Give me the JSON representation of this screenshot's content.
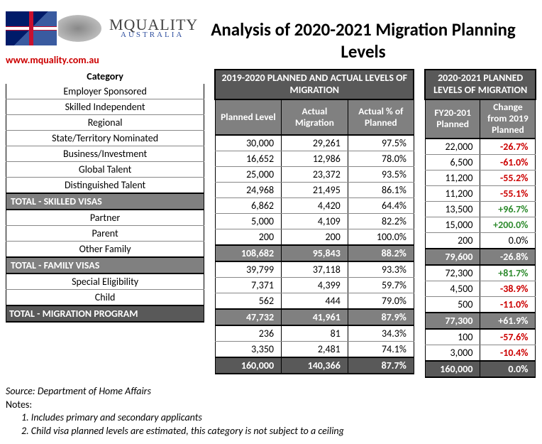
{
  "brand": {
    "line1": "MQUALITY",
    "line2": "AUSTRALIA"
  },
  "url": "www.mquality.com.au",
  "title": "Analysis of 2020-2021 Migration Planning Levels",
  "headers": {
    "category": "Category",
    "t1_super": "2019-2020 PLANNED AND ACTUAL LEVELS OF MIGRATION",
    "t2_super": "2020-2021 PLANNED LEVELS OF MIGRATION",
    "planned_level": "Planned Level",
    "actual_migration": "Actual Migration",
    "actual_pct": "Actual % of Planned",
    "fy_planned": "FY20-201 Planned",
    "change_pct": "Change from 2019 Planned"
  },
  "rows": [
    {
      "type": "data",
      "cat": "Employer Sponsored",
      "plan": "30,000",
      "act": "29,261",
      "apct": "97.5%",
      "fy": "22,000",
      "chg": "-26.7%",
      "sgn": "neg"
    },
    {
      "type": "data",
      "cat": "Skilled Independent",
      "plan": "16,652",
      "act": "12,986",
      "apct": "78.0%",
      "fy": "6,500",
      "chg": "-61.0%",
      "sgn": "neg"
    },
    {
      "type": "data",
      "cat": "Regional",
      "plan": "25,000",
      "act": "23,372",
      "apct": "93.5%",
      "fy": "11,200",
      "chg": "-55.2%",
      "sgn": "neg"
    },
    {
      "type": "data",
      "cat": "State/Territory Nominated",
      "plan": "24,968",
      "act": "21,495",
      "apct": "86.1%",
      "fy": "11,200",
      "chg": "-55.1%",
      "sgn": "neg"
    },
    {
      "type": "data",
      "cat": "Business/Investment",
      "plan": "6,862",
      "act": "4,420",
      "apct": "64.4%",
      "fy": "13,500",
      "chg": "+96.7%",
      "sgn": "pos"
    },
    {
      "type": "data",
      "cat": "Global Talent",
      "plan": "5,000",
      "act": "4,109",
      "apct": "82.2%",
      "fy": "15,000",
      "chg": "+200.0%",
      "sgn": "pos"
    },
    {
      "type": "data",
      "cat": "Distinguished Talent",
      "plan": "200",
      "act": "200",
      "apct": "100.0%",
      "fy": "200",
      "chg": "0.0%",
      "sgn": "zero"
    },
    {
      "type": "subtotal",
      "cat": "TOTAL - SKILLED VISAS",
      "plan": "108,682",
      "act": "95,843",
      "apct": "88.2%",
      "fy": "79,600",
      "chg": "-26.8%",
      "sgn": "neg"
    },
    {
      "type": "data",
      "cat": "Partner",
      "plan": "39,799",
      "act": "37,118",
      "apct": "93.3%",
      "fy": "72,300",
      "chg": "+81.7%",
      "sgn": "pos"
    },
    {
      "type": "data",
      "cat": "Parent",
      "plan": "7,371",
      "act": "4,399",
      "apct": "59.7%",
      "fy": "4,500",
      "chg": "-38.9%",
      "sgn": "neg"
    },
    {
      "type": "data",
      "cat": "Other Family",
      "plan": "562",
      "act": "444",
      "apct": "79.0%",
      "fy": "500",
      "chg": "-11.0%",
      "sgn": "neg"
    },
    {
      "type": "subtotal",
      "cat": "TOTAL - FAMILY VISAS",
      "plan": "47,732",
      "act": "41,961",
      "apct": "87.9%",
      "fy": "77,300",
      "chg": "+61.9%",
      "sgn": "pos"
    },
    {
      "type": "data",
      "cat": "Special Eligibility",
      "plan": "236",
      "act": "81",
      "apct": "34.3%",
      "fy": "100",
      "chg": "-57.6%",
      "sgn": "neg"
    },
    {
      "type": "data",
      "cat": "Child",
      "plan": "3,350",
      "act": "2,481",
      "apct": "74.1%",
      "fy": "3,000",
      "chg": "-10.4%",
      "sgn": "neg"
    },
    {
      "type": "grandtotal",
      "cat": "TOTAL - MIGRATION PROGRAM",
      "plan": "160,000",
      "act": "140,366",
      "apct": "87.7%",
      "fy": "160,000",
      "chg": "0.0%",
      "sgn": "zero",
      "chgwhite": true
    }
  ],
  "footer": {
    "source": "Source: Department of Home Affairs",
    "notes_label": "Notes:",
    "note1": "1. Includes primary and secondary applicants",
    "note2": "2. Child visa planned levels are estimated, this category is not subject to a ceiling"
  }
}
